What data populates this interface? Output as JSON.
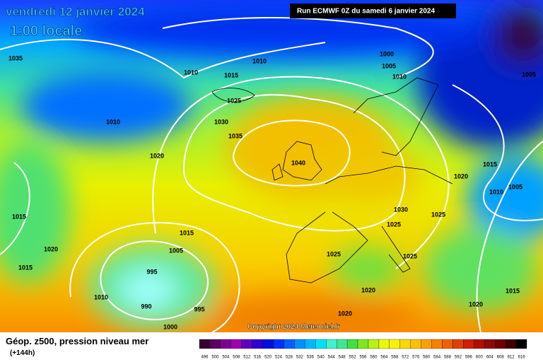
{
  "header": {
    "date": "vendredi 12 janvier 2024",
    "time": "1:00 locale",
    "run": "Run ECMWF 0Z du samedi 6 janvier 2024"
  },
  "isobar_labels": [
    "1035",
    "1010",
    "1010",
    "1015",
    "1000",
    "1005",
    "1010",
    "1005",
    "1025",
    "1010",
    "1030",
    "1035",
    "1020",
    "1040",
    "1020",
    "1015",
    "1005",
    "1010",
    "1015",
    "1030",
    "1025",
    "1025",
    "1015",
    "1020",
    "1005",
    "1025",
    "1025",
    "1015",
    "995",
    "1010",
    "990",
    "995",
    "1020",
    "1015",
    "1020",
    "1020",
    "1000"
  ],
  "copyright": "Copyright 2024 Meteociel.fr",
  "footer": {
    "title": "Géop. z500, pression niveau mer",
    "lead": "(+144h)"
  },
  "scale": {
    "values": [
      496,
      500,
      504,
      508,
      512,
      516,
      520,
      524,
      528,
      532,
      536,
      540,
      544,
      548,
      552,
      556,
      560,
      564,
      568,
      572,
      576,
      580,
      584,
      588,
      592,
      596,
      600,
      604,
      608,
      612,
      616
    ],
    "colors": [
      "#3a0030",
      "#5a0060",
      "#800090",
      "#a000b0",
      "#6000c0",
      "#3000d0",
      "#0010e0",
      "#0030ff",
      "#0060ff",
      "#0090ff",
      "#00b8ff",
      "#00e0ff",
      "#40f0d0",
      "#40e890",
      "#40e040",
      "#80e820",
      "#b8f010",
      "#e8f800",
      "#f8f000",
      "#f8d800",
      "#f8c000",
      "#f8a000",
      "#f88000",
      "#f06000",
      "#e04000",
      "#d02000",
      "#b01000",
      "#900808",
      "#700000",
      "#400000",
      "#000000"
    ]
  }
}
